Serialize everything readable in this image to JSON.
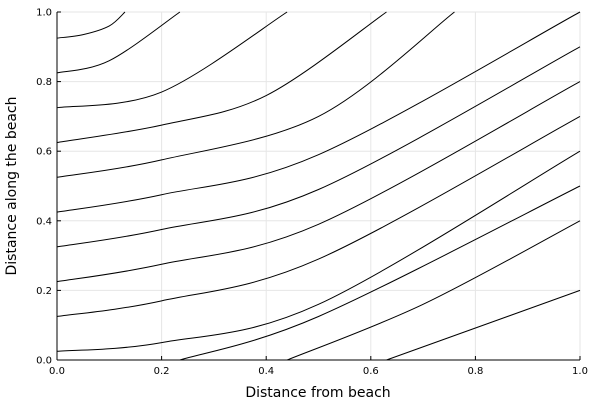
{
  "chart_data": {
    "type": "line",
    "title": "",
    "xlabel": "Distance from beach",
    "ylabel": "Distance along the beach",
    "xlim": [
      0,
      1
    ],
    "ylim": [
      0,
      1
    ],
    "grid": true,
    "legend": "none",
    "line_color": "#000000",
    "x_ticks": [
      {
        "value": 0,
        "label": "0.0"
      },
      {
        "value": 0.2,
        "label": "0.2"
      },
      {
        "value": 0.4,
        "label": "0.4"
      },
      {
        "value": 0.6,
        "label": "0.6"
      },
      {
        "value": 0.8,
        "label": "0.8"
      },
      {
        "value": 1,
        "label": "1.0"
      }
    ],
    "y_ticks": [
      {
        "value": 0,
        "label": "0.0"
      },
      {
        "value": 0.2,
        "label": "0.2"
      },
      {
        "value": 0.4,
        "label": "0.4"
      },
      {
        "value": 0.6,
        "label": "0.6"
      },
      {
        "value": 0.8,
        "label": "0.8"
      },
      {
        "value": 1,
        "label": "1.0"
      }
    ],
    "series": [
      {
        "x": [
          0.816,
          1.0
        ],
        "y": [
          0.0,
          0.0
        ]
      },
      {
        "x": [
          0.63,
          1.0
        ],
        "y": [
          0.0,
          0.2
        ]
      },
      {
        "x": [
          0.44,
          0.7,
          1.0
        ],
        "y": [
          0.0,
          0.16,
          0.4
        ]
      },
      {
        "x": [
          0.235,
          0.5,
          1.0
        ],
        "y": [
          0.0,
          0.125,
          0.5
        ]
      },
      {
        "x": [
          0.0,
          0.2,
          0.5,
          1.0
        ],
        "y": [
          0.025,
          0.05,
          0.16,
          0.6
        ]
      },
      {
        "x": [
          0.0,
          0.2,
          0.5,
          1.0
        ],
        "y": [
          0.125,
          0.17,
          0.29,
          0.7
        ]
      },
      {
        "x": [
          0.0,
          0.2,
          0.5,
          1.0
        ],
        "y": [
          0.225,
          0.275,
          0.39,
          0.8
        ]
      },
      {
        "x": [
          0.0,
          0.2,
          0.5,
          1.0
        ],
        "y": [
          0.325,
          0.375,
          0.49,
          0.9
        ]
      },
      {
        "x": [
          0.0,
          0.2,
          0.5,
          1.0
        ],
        "y": [
          0.425,
          0.475,
          0.59,
          1.0
        ]
      },
      {
        "x": [
          0.0,
          0.2,
          0.5,
          0.76
        ],
        "y": [
          0.525,
          0.575,
          0.7,
          1.0
        ]
      },
      {
        "x": [
          0.0,
          0.2,
          0.4,
          0.63
        ],
        "y": [
          0.625,
          0.675,
          0.76,
          1.0
        ]
      },
      {
        "x": [
          0.0,
          0.2,
          0.44
        ],
        "y": [
          0.725,
          0.77,
          1.0
        ]
      },
      {
        "x": [
          0.0,
          0.1,
          0.235
        ],
        "y": [
          0.825,
          0.86,
          1.0
        ]
      },
      {
        "x": [
          0.0,
          0.05,
          0.1,
          0.13
        ],
        "y": [
          0.925,
          0.935,
          0.96,
          1.0
        ]
      }
    ]
  }
}
